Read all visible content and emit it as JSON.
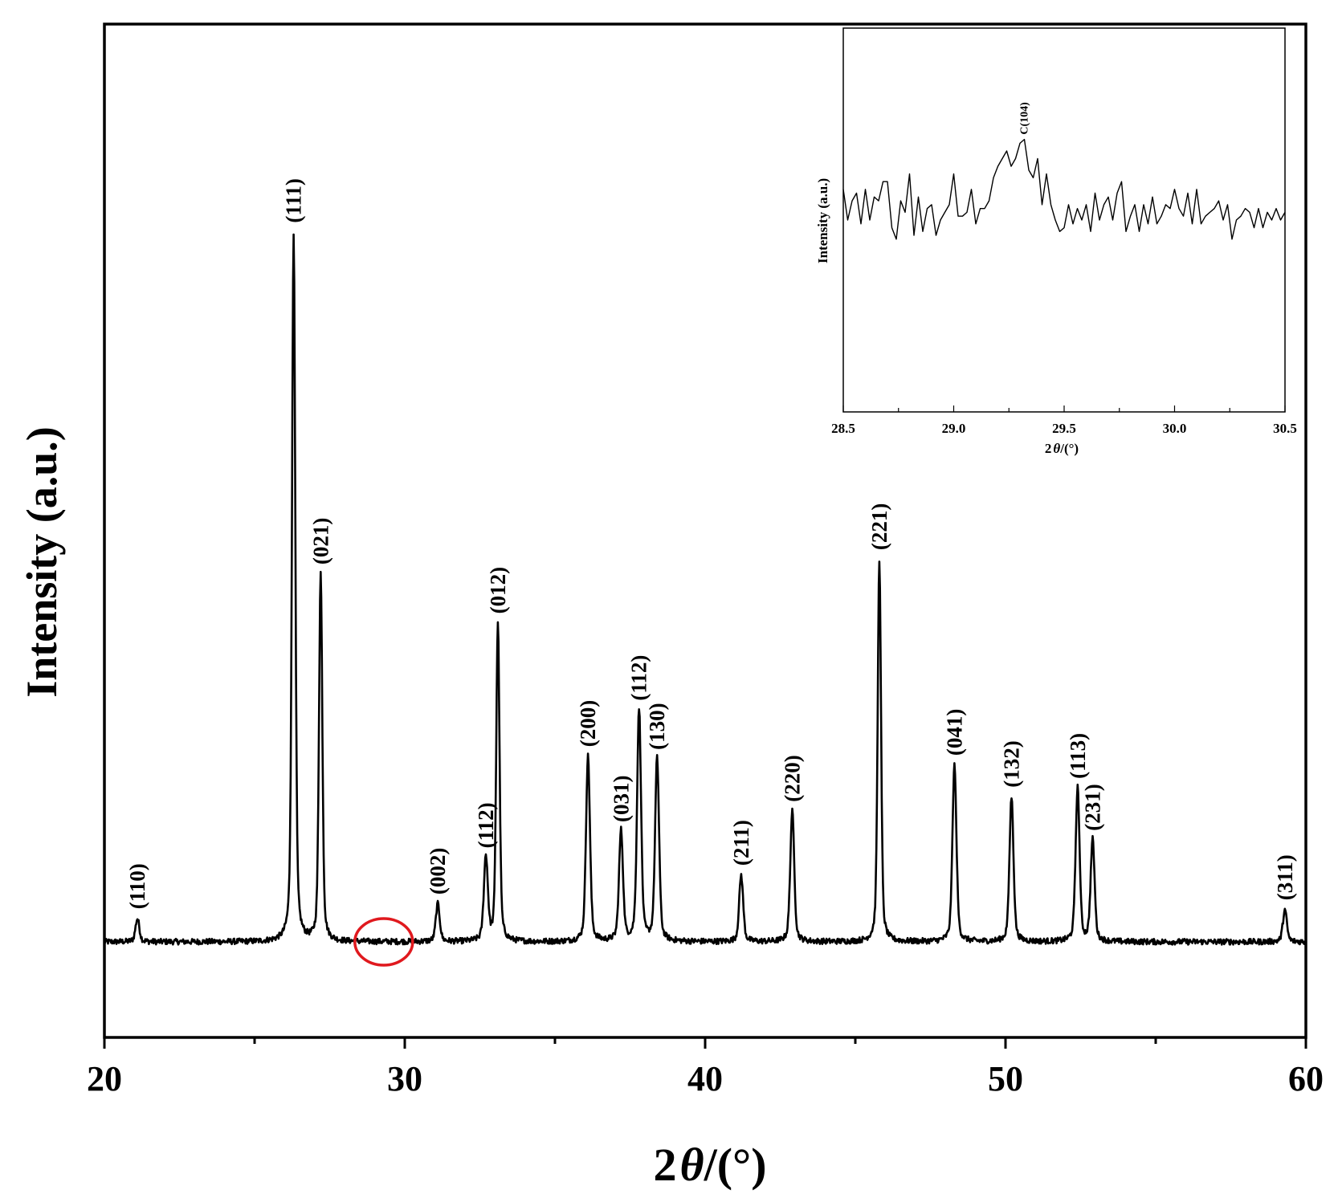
{
  "chart_data": [
    {
      "type": "line",
      "xlabel_prefix": "2",
      "xlabel_theta": "θ",
      "xlabel_suffix": "/(°)",
      "ylabel": "Intensity (a.u.)",
      "xlim": [
        20,
        60
      ],
      "ylim": [
        -300,
        3200
      ],
      "xticks": [
        20,
        30,
        40,
        50,
        60
      ],
      "grid": false,
      "baseline": 30,
      "noise_amplitude": 10,
      "peaks": [
        {
          "label": "(110)",
          "x": 21.1,
          "y": 80
        },
        {
          "label": "(111)",
          "x": 26.3,
          "y": 2450
        },
        {
          "label": "(021)",
          "x": 27.2,
          "y": 1270
        },
        {
          "label": "(002)",
          "x": 31.1,
          "y": 130
        },
        {
          "label": "(112)",
          "x": 32.7,
          "y": 290
        },
        {
          "label": "(012)",
          "x": 33.1,
          "y": 1100
        },
        {
          "label": "(200)",
          "x": 36.1,
          "y": 640
        },
        {
          "label": "(031)",
          "x": 37.2,
          "y": 380
        },
        {
          "label": "(112)",
          "x": 37.8,
          "y": 800
        },
        {
          "label": "(130)",
          "x": 38.4,
          "y": 630
        },
        {
          "label": "(211)",
          "x": 41.2,
          "y": 230
        },
        {
          "label": "(220)",
          "x": 42.9,
          "y": 450
        },
        {
          "label": "(221)",
          "x": 45.8,
          "y": 1320
        },
        {
          "label": "(041)",
          "x": 48.3,
          "y": 610
        },
        {
          "label": "(132)",
          "x": 50.2,
          "y": 500
        },
        {
          "label": "(113)",
          "x": 52.4,
          "y": 530
        },
        {
          "label": "(231)",
          "x": 52.9,
          "y": 350
        },
        {
          "label": "(311)",
          "x": 59.3,
          "y": 110
        }
      ],
      "highlight_circle": {
        "x": 29.3,
        "y": 30,
        "color": "#e0191e"
      }
    },
    {
      "type": "line",
      "xlabel_prefix": "2",
      "xlabel_theta": "θ",
      "xlabel_suffix": "/(°)",
      "ylabel": "Intensity (a.u.)",
      "xlim": [
        28.5,
        30.5
      ],
      "ylim": [
        0,
        100
      ],
      "xticks": [
        "28.5",
        "29.0",
        "29.5",
        "30.0",
        "30.5"
      ],
      "x": [
        28.5,
        28.52,
        28.54,
        28.56,
        28.58,
        28.6,
        28.62,
        28.64,
        28.66,
        28.68,
        28.7,
        28.72,
        28.74,
        28.76,
        28.78,
        28.8,
        28.82,
        28.84,
        28.86,
        28.88,
        28.9,
        28.92,
        28.94,
        28.96,
        28.98,
        29.0,
        29.02,
        29.04,
        29.06,
        29.08,
        29.1,
        29.12,
        29.14,
        29.16,
        29.18,
        29.2,
        29.22,
        29.24,
        29.26,
        29.28,
        29.3,
        29.32,
        29.34,
        29.36,
        29.38,
        29.4,
        29.42,
        29.44,
        29.46,
        29.48,
        29.5,
        29.52,
        29.54,
        29.56,
        29.58,
        29.6,
        29.62,
        29.64,
        29.66,
        29.68,
        29.7,
        29.72,
        29.74,
        29.76,
        29.78,
        29.8,
        29.82,
        29.84,
        29.86,
        29.88,
        29.9,
        29.92,
        29.94,
        29.96,
        29.98,
        30.0,
        30.02,
        30.04,
        30.06,
        30.08,
        30.1,
        30.12,
        30.14,
        30.16,
        30.18,
        30.2,
        30.22,
        30.24,
        30.26,
        30.28,
        30.3,
        30.32,
        30.34,
        30.36,
        30.38,
        30.4,
        30.42,
        30.44,
        30.46,
        30.48,
        30.5
      ],
      "y": [
        58,
        50,
        55,
        57,
        49,
        58,
        50,
        56,
        55,
        60,
        60,
        48,
        45,
        55,
        52,
        62,
        46,
        56,
        47,
        53,
        54,
        46,
        50,
        52,
        54,
        62,
        51,
        51,
        52,
        58,
        49,
        53,
        53,
        55,
        61,
        64,
        66,
        68,
        64,
        66,
        70,
        71,
        63,
        61,
        66,
        54,
        62,
        54,
        50,
        47,
        48,
        54,
        49,
        53,
        50,
        54,
        47,
        57,
        50,
        54,
        56,
        50,
        57,
        60,
        47,
        51,
        54,
        47,
        54,
        49,
        56,
        49,
        51,
        54,
        53,
        58,
        53,
        51,
        57,
        49,
        58,
        49,
        51,
        52,
        53,
        55,
        50,
        54,
        45,
        50,
        51,
        53,
        52,
        48,
        53,
        48,
        52,
        50,
        53,
        50,
        52
      ],
      "annotation": {
        "text": "C(104)",
        "x": 29.32,
        "y": 71
      }
    }
  ]
}
